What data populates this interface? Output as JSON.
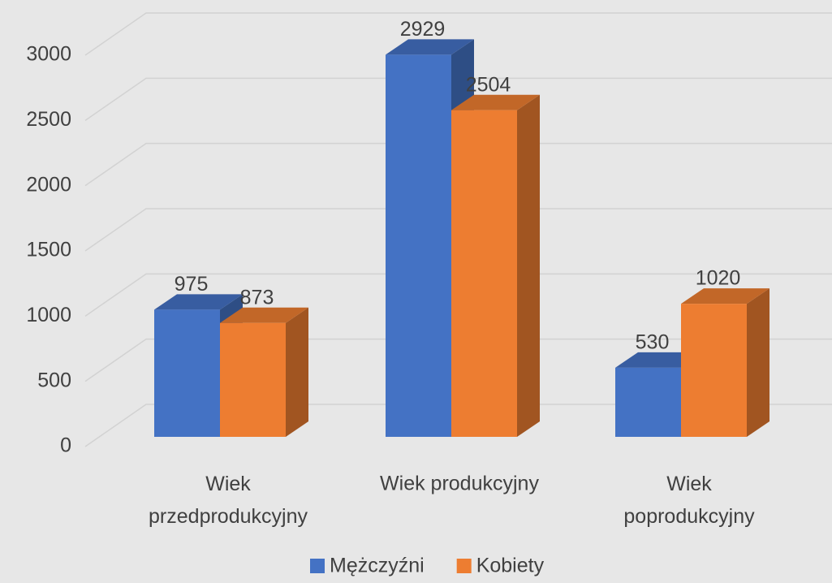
{
  "chart_data": {
    "type": "bar3d",
    "categories": [
      "Wiek przedprodukcyjny",
      "Wiek produkcyjny",
      "Wiek poprodukcyjny"
    ],
    "series": [
      {
        "name": "Mężczyźni",
        "color": "#4472c4",
        "values": [
          975,
          2929,
          530
        ]
      },
      {
        "name": "Kobiety",
        "color": "#ed7d31",
        "values": [
          873,
          2504,
          1020
        ]
      }
    ],
    "ylim": [
      0,
      3000
    ],
    "yticks": [
      0,
      500,
      1000,
      1500,
      2000,
      2500,
      3000
    ],
    "grid": true,
    "legend": "bottom"
  }
}
